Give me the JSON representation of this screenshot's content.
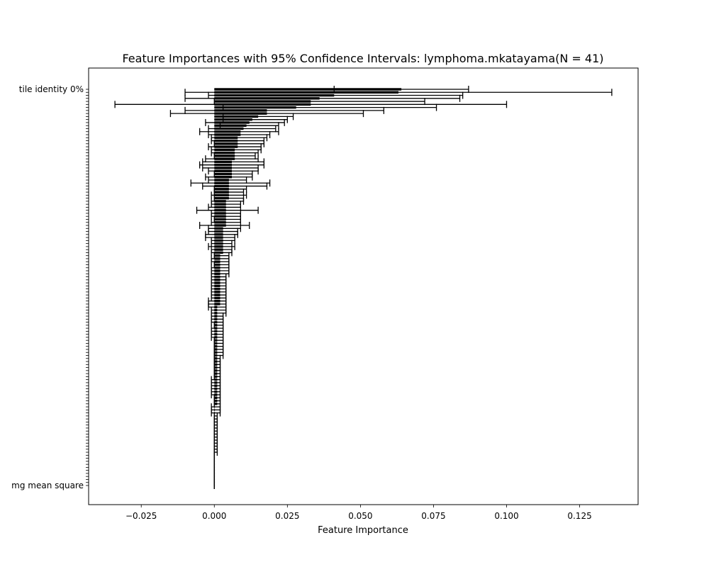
{
  "chart_data": {
    "type": "bar",
    "orientation": "horizontal",
    "title": "Feature Importances with 95% Confidence Intervals: lymphoma.mkatayama(N = 41)",
    "xlabel": "Feature Importance",
    "ylabel": "",
    "xlim": [
      -0.043,
      0.145
    ],
    "xticks": [
      -0.025,
      0.0,
      0.025,
      0.05,
      0.075,
      0.1,
      0.125
    ],
    "xtick_labels": [
      "−0.025",
      "0.000",
      "0.025",
      "0.050",
      "0.075",
      "0.100",
      "0.125"
    ],
    "bar_color": "#000000",
    "grid": false,
    "legend": "none",
    "category_labels_visible": [
      "tile identity 0%",
      "mg mean square"
    ],
    "bars": [
      {
        "value": 0.064,
        "lo": 0.041,
        "hi": 0.087
      },
      {
        "value": 0.063,
        "lo": -0.01,
        "hi": 0.136
      },
      {
        "value": 0.041,
        "lo": -0.002,
        "hi": 0.085
      },
      {
        "value": 0.036,
        "lo": -0.01,
        "hi": 0.084
      },
      {
        "value": 0.033,
        "lo": 0.0,
        "hi": 0.072
      },
      {
        "value": 0.033,
        "lo": -0.034,
        "hi": 0.1
      },
      {
        "value": 0.028,
        "lo": 0.003,
        "hi": 0.076
      },
      {
        "value": 0.018,
        "lo": -0.01,
        "hi": 0.058
      },
      {
        "value": 0.018,
        "lo": -0.015,
        "hi": 0.051
      },
      {
        "value": 0.015,
        "lo": 0.003,
        "hi": 0.027
      },
      {
        "value": 0.013,
        "lo": 0.003,
        "hi": 0.025
      },
      {
        "value": 0.012,
        "lo": -0.003,
        "hi": 0.024
      },
      {
        "value": 0.011,
        "lo": 0.002,
        "hi": 0.022
      },
      {
        "value": 0.01,
        "lo": -0.002,
        "hi": 0.021
      },
      {
        "value": 0.009,
        "lo": -0.005,
        "hi": 0.022
      },
      {
        "value": 0.009,
        "lo": -0.002,
        "hi": 0.019
      },
      {
        "value": 0.008,
        "lo": -0.001,
        "hi": 0.018
      },
      {
        "value": 0.008,
        "lo": -0.001,
        "hi": 0.017
      },
      {
        "value": 0.008,
        "lo": 0.0,
        "hi": 0.017
      },
      {
        "value": 0.008,
        "lo": -0.002,
        "hi": 0.016
      },
      {
        "value": 0.007,
        "lo": -0.001,
        "hi": 0.016
      },
      {
        "value": 0.007,
        "lo": -0.001,
        "hi": 0.015
      },
      {
        "value": 0.007,
        "lo": 0.0,
        "hi": 0.014
      },
      {
        "value": 0.007,
        "lo": -0.003,
        "hi": 0.015
      },
      {
        "value": 0.006,
        "lo": -0.004,
        "hi": 0.017
      },
      {
        "value": 0.006,
        "lo": -0.005,
        "hi": 0.017
      },
      {
        "value": 0.006,
        "lo": -0.004,
        "hi": 0.015
      },
      {
        "value": 0.006,
        "lo": -0.002,
        "hi": 0.015
      },
      {
        "value": 0.006,
        "lo": 0.0,
        "hi": 0.013
      },
      {
        "value": 0.006,
        "lo": -0.003,
        "hi": 0.013
      },
      {
        "value": 0.005,
        "lo": -0.002,
        "hi": 0.011
      },
      {
        "value": 0.005,
        "lo": -0.008,
        "hi": 0.019
      },
      {
        "value": 0.005,
        "lo": -0.004,
        "hi": 0.018
      },
      {
        "value": 0.005,
        "lo": 0.0,
        "hi": 0.011
      },
      {
        "value": 0.005,
        "lo": 0.0,
        "hi": 0.01
      },
      {
        "value": 0.005,
        "lo": -0.001,
        "hi": 0.011
      },
      {
        "value": 0.005,
        "lo": 0.0,
        "hi": 0.01
      },
      {
        "value": 0.004,
        "lo": -0.001,
        "hi": 0.01
      },
      {
        "value": 0.004,
        "lo": -0.001,
        "hi": 0.009
      },
      {
        "value": 0.004,
        "lo": -0.002,
        "hi": 0.009
      },
      {
        "value": 0.004,
        "lo": -0.006,
        "hi": 0.015
      },
      {
        "value": 0.004,
        "lo": -0.001,
        "hi": 0.009
      },
      {
        "value": 0.004,
        "lo": -0.001,
        "hi": 0.009
      },
      {
        "value": 0.004,
        "lo": 0.0,
        "hi": 0.009
      },
      {
        "value": 0.004,
        "lo": -0.001,
        "hi": 0.009
      },
      {
        "value": 0.004,
        "lo": -0.005,
        "hi": 0.012
      },
      {
        "value": 0.003,
        "lo": -0.002,
        "hi": 0.009
      },
      {
        "value": 0.003,
        "lo": -0.002,
        "hi": 0.008
      },
      {
        "value": 0.003,
        "lo": -0.003,
        "hi": 0.008
      },
      {
        "value": 0.003,
        "lo": -0.003,
        "hi": 0.007
      },
      {
        "value": 0.003,
        "lo": -0.001,
        "hi": 0.007
      },
      {
        "value": 0.003,
        "lo": -0.001,
        "hi": 0.006
      },
      {
        "value": 0.003,
        "lo": -0.002,
        "hi": 0.007
      },
      {
        "value": 0.003,
        "lo": -0.001,
        "hi": 0.006
      },
      {
        "value": 0.003,
        "lo": -0.001,
        "hi": 0.006
      },
      {
        "value": 0.002,
        "lo": 0.0,
        "hi": 0.005
      },
      {
        "value": 0.002,
        "lo": -0.001,
        "hi": 0.005
      },
      {
        "value": 0.002,
        "lo": -0.001,
        "hi": 0.005
      },
      {
        "value": 0.002,
        "lo": 0.0,
        "hi": 0.005
      },
      {
        "value": 0.002,
        "lo": -0.001,
        "hi": 0.005
      },
      {
        "value": 0.002,
        "lo": -0.001,
        "hi": 0.005
      },
      {
        "value": 0.002,
        "lo": -0.001,
        "hi": 0.005
      },
      {
        "value": 0.002,
        "lo": -0.001,
        "hi": 0.004
      },
      {
        "value": 0.002,
        "lo": -0.001,
        "hi": 0.004
      },
      {
        "value": 0.002,
        "lo": -0.001,
        "hi": 0.004
      },
      {
        "value": 0.002,
        "lo": -0.001,
        "hi": 0.004
      },
      {
        "value": 0.002,
        "lo": -0.001,
        "hi": 0.004
      },
      {
        "value": 0.002,
        "lo": -0.001,
        "hi": 0.004
      },
      {
        "value": 0.002,
        "lo": -0.001,
        "hi": 0.004
      },
      {
        "value": 0.002,
        "lo": -0.001,
        "hi": 0.004
      },
      {
        "value": 0.002,
        "lo": -0.002,
        "hi": 0.004
      },
      {
        "value": 0.002,
        "lo": -0.002,
        "hi": 0.004
      },
      {
        "value": 0.001,
        "lo": -0.002,
        "hi": 0.004
      },
      {
        "value": 0.001,
        "lo": -0.001,
        "hi": 0.004
      },
      {
        "value": 0.001,
        "lo": -0.001,
        "hi": 0.004
      },
      {
        "value": 0.001,
        "lo": -0.001,
        "hi": 0.003
      },
      {
        "value": 0.001,
        "lo": -0.001,
        "hi": 0.003
      },
      {
        "value": 0.001,
        "lo": -0.001,
        "hi": 0.003
      },
      {
        "value": 0.001,
        "lo": 0.0,
        "hi": 0.003
      },
      {
        "value": 0.001,
        "lo": -0.001,
        "hi": 0.003
      },
      {
        "value": 0.001,
        "lo": -0.001,
        "hi": 0.003
      },
      {
        "value": 0.001,
        "lo": -0.001,
        "hi": 0.003
      },
      {
        "value": 0.001,
        "lo": -0.001,
        "hi": 0.003
      },
      {
        "value": 0.001,
        "lo": 0.0,
        "hi": 0.003
      },
      {
        "value": 0.001,
        "lo": 0.0,
        "hi": 0.003
      },
      {
        "value": 0.001,
        "lo": 0.0,
        "hi": 0.003
      },
      {
        "value": 0.001,
        "lo": 0.0,
        "hi": 0.003
      },
      {
        "value": 0.001,
        "lo": 0.0,
        "hi": 0.003
      },
      {
        "value": 0.001,
        "lo": 0.0,
        "hi": 0.003
      },
      {
        "value": 0.001,
        "lo": 0.0,
        "hi": 0.002
      },
      {
        "value": 0.001,
        "lo": 0.0,
        "hi": 0.002
      },
      {
        "value": 0.001,
        "lo": 0.0,
        "hi": 0.002
      },
      {
        "value": 0.001,
        "lo": 0.0,
        "hi": 0.002
      },
      {
        "value": 0.001,
        "lo": 0.0,
        "hi": 0.002
      },
      {
        "value": 0.001,
        "lo": 0.0,
        "hi": 0.002
      },
      {
        "value": 0.001,
        "lo": 0.0,
        "hi": 0.002
      },
      {
        "value": 0.001,
        "lo": -0.001,
        "hi": 0.002
      },
      {
        "value": 0.001,
        "lo": -0.001,
        "hi": 0.002
      },
      {
        "value": 0.001,
        "lo": -0.001,
        "hi": 0.002
      },
      {
        "value": 0.001,
        "lo": -0.001,
        "hi": 0.002
      },
      {
        "value": 0.001,
        "lo": -0.001,
        "hi": 0.002
      },
      {
        "value": 0.001,
        "lo": -0.001,
        "hi": 0.002
      },
      {
        "value": 0.001,
        "lo": 0.0,
        "hi": 0.002
      },
      {
        "value": 0.001,
        "lo": 0.0,
        "hi": 0.002
      },
      {
        "value": 0.001,
        "lo": 0.0,
        "hi": 0.002
      },
      {
        "value": 0.0,
        "lo": -0.001,
        "hi": 0.002
      },
      {
        "value": 0.0,
        "lo": -0.001,
        "hi": 0.002
      },
      {
        "value": 0.0,
        "lo": -0.001,
        "hi": 0.002
      },
      {
        "value": 0.0,
        "lo": 0.0,
        "hi": 0.001
      },
      {
        "value": 0.0,
        "lo": 0.0,
        "hi": 0.001
      },
      {
        "value": 0.0,
        "lo": 0.0,
        "hi": 0.001
      },
      {
        "value": 0.0,
        "lo": 0.0,
        "hi": 0.001
      },
      {
        "value": 0.0,
        "lo": 0.0,
        "hi": 0.001
      },
      {
        "value": 0.0,
        "lo": 0.0,
        "hi": 0.001
      },
      {
        "value": 0.0,
        "lo": 0.0,
        "hi": 0.001
      },
      {
        "value": 0.0,
        "lo": 0.0,
        "hi": 0.001
      },
      {
        "value": 0.0,
        "lo": 0.0,
        "hi": 0.001
      },
      {
        "value": 0.0,
        "lo": 0.0,
        "hi": 0.001
      },
      {
        "value": 0.0,
        "lo": 0.0,
        "hi": 0.001
      },
      {
        "value": 0.0,
        "lo": 0.0,
        "hi": 0.001
      },
      {
        "value": 0.0,
        "lo": 0.0,
        "hi": 0.001
      },
      {
        "value": 0.0,
        "lo": 0.0,
        "hi": 0.0
      },
      {
        "value": 0.0,
        "lo": 0.0,
        "hi": 0.0
      },
      {
        "value": 0.0,
        "lo": 0.0,
        "hi": 0.0
      },
      {
        "value": 0.0,
        "lo": 0.0,
        "hi": 0.0
      },
      {
        "value": 0.0,
        "lo": 0.0,
        "hi": 0.0
      },
      {
        "value": 0.0,
        "lo": 0.0,
        "hi": 0.0
      },
      {
        "value": 0.0,
        "lo": 0.0,
        "hi": 0.0
      },
      {
        "value": 0.0,
        "lo": 0.0,
        "hi": 0.0
      },
      {
        "value": 0.0,
        "lo": 0.0,
        "hi": 0.0
      },
      {
        "value": 0.0,
        "lo": 0.0,
        "hi": 0.0
      },
      {
        "value": 0.0,
        "lo": 0.0,
        "hi": 0.0
      }
    ]
  }
}
